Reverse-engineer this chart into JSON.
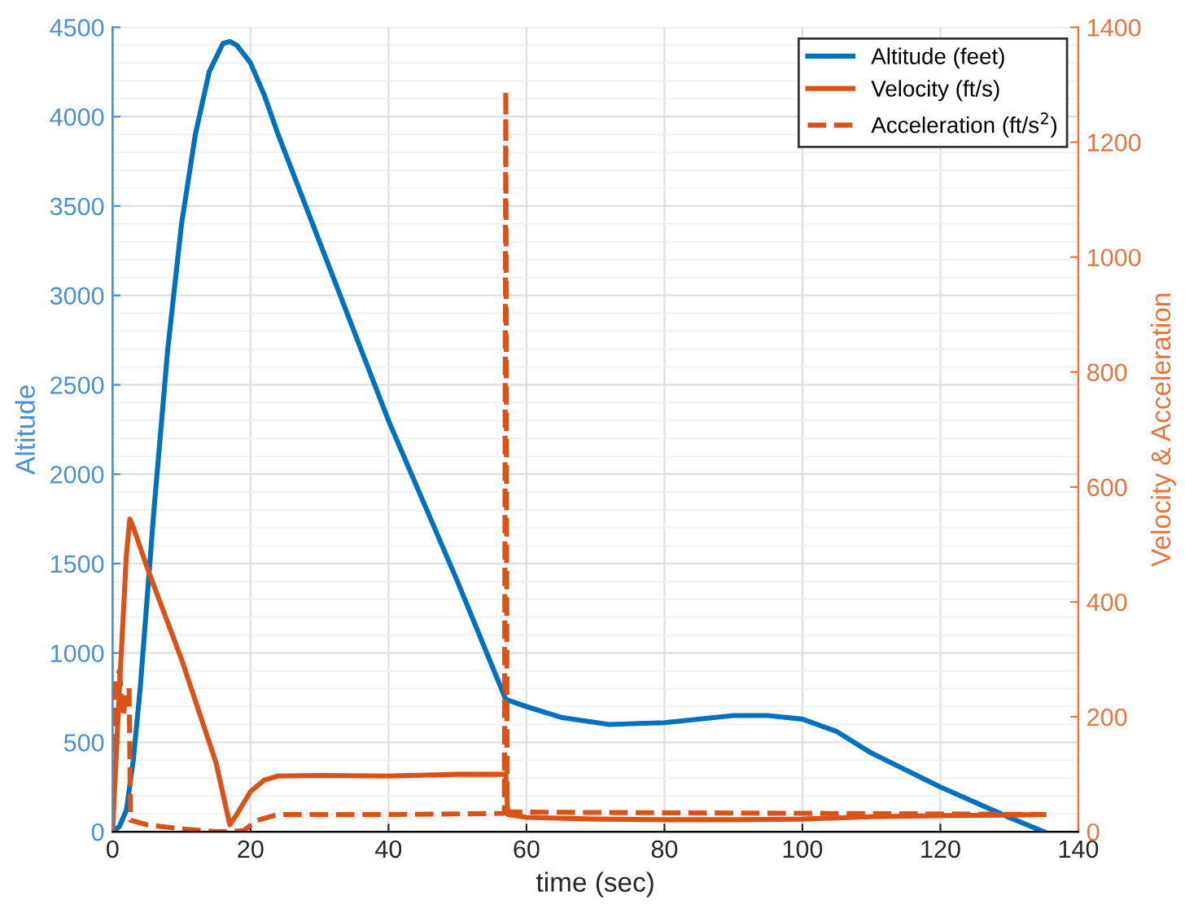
{
  "chart_data": {
    "type": "line",
    "xlabel": "time (sec)",
    "ylabel": "Altitude",
    "y2label": "Velocity & Acceleration",
    "xlim": [
      0,
      140
    ],
    "xticks": [
      0,
      20,
      40,
      60,
      80,
      100,
      120,
      140
    ],
    "ylim": [
      0,
      4500
    ],
    "yticks": [
      0,
      500,
      1000,
      1500,
      2000,
      2500,
      3000,
      3500,
      4000,
      4500
    ],
    "y2lim": [
      0,
      1400
    ],
    "y2ticks": [
      0,
      200,
      400,
      600,
      800,
      1000,
      1200,
      1400
    ],
    "grid": true,
    "legend": "top right",
    "line_style": "solid",
    "marker": "none",
    "series": [
      {
        "name": "Altitude (feet)",
        "color": "#0072bd",
        "x": [
          0,
          1,
          2,
          3,
          4,
          5,
          6,
          8,
          10,
          12,
          14,
          16,
          17,
          18,
          20,
          22,
          24,
          30,
          40,
          50,
          57,
          60,
          65,
          72,
          80,
          90,
          95,
          100,
          105,
          110,
          120,
          130,
          135
        ],
        "values": [
          0,
          30,
          120,
          400,
          800,
          1300,
          1800,
          2700,
          3400,
          3900,
          4250,
          4410,
          4420,
          4400,
          4300,
          4120,
          3900,
          3300,
          2300,
          1400,
          740,
          700,
          640,
          600,
          610,
          650,
          650,
          630,
          560,
          440,
          250,
          80,
          0
        ]
      },
      {
        "name": "Velocity (ft/s)",
        "color": "#d95319",
        "axis": "y2",
        "x": [
          0,
          1,
          2,
          2.5,
          3,
          5,
          10,
          15,
          17,
          18,
          20,
          22,
          24,
          30,
          40,
          50,
          57,
          57.3,
          60,
          70,
          80,
          90,
          100,
          110,
          120,
          130,
          135
        ],
        "values": [
          0,
          250,
          480,
          544,
          530,
          460,
          300,
          120,
          12,
          30,
          70,
          90,
          97,
          98,
          97,
          100,
          100,
          30,
          25,
          22,
          21,
          21,
          22,
          26,
          28,
          29,
          30
        ]
      },
      {
        "name": "Acceleration (ft/s$^{2}$)",
        "color": "#d95319",
        "axis": "y2",
        "line_style": "dashed",
        "x": [
          0,
          0.3,
          1,
          1.5,
          2,
          2.4,
          2.6,
          5,
          10,
          15,
          17,
          19,
          21,
          24,
          30,
          40,
          50,
          56.8,
          57,
          57.2,
          60,
          80,
          100,
          120,
          135
        ],
        "values": [
          0,
          250,
          280,
          200,
          240,
          250,
          20,
          12,
          5,
          0,
          0,
          2,
          20,
          30,
          30,
          30,
          31,
          32,
          1290,
          35,
          34,
          33,
          32,
          31,
          30
        ]
      }
    ]
  }
}
